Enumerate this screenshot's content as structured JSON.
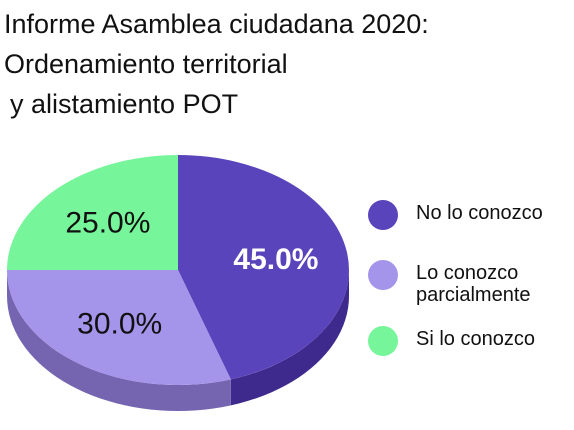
{
  "title": {
    "line1": "Informe Asamblea ciudadana 2020:",
    "line2": "Ordenamiento territorial",
    "line3": "y alistamiento POT"
  },
  "chart_data": {
    "type": "pie",
    "title": "Informe Asamblea ciudadana 2020: Ordenamiento territorial y alistamiento POT",
    "slices": [
      {
        "label": "No lo conozco",
        "legend_lines": [
          "No lo conozco"
        ],
        "value": 45.0,
        "display": "45.0%",
        "color": "#5a44bb",
        "side_color": "#3d2a8c",
        "label_color": "#ffffff",
        "label_bold": true
      },
      {
        "label": "Lo conozco parcialmente",
        "legend_lines": [
          "Lo conozco",
          "parcialmente"
        ],
        "value": 30.0,
        "display": "30.0%",
        "color": "#a494ea",
        "side_color": "#7565b0",
        "label_color": "#111111",
        "label_bold": false
      },
      {
        "label": "Si lo conozco",
        "legend_lines": [
          "Si lo conozco"
        ],
        "value": 25.0,
        "display": "25.0%",
        "color": "#77f59b",
        "side_color": "#4fb56c",
        "label_color": "#111111",
        "label_bold": false
      }
    ],
    "legend_position": "right"
  }
}
